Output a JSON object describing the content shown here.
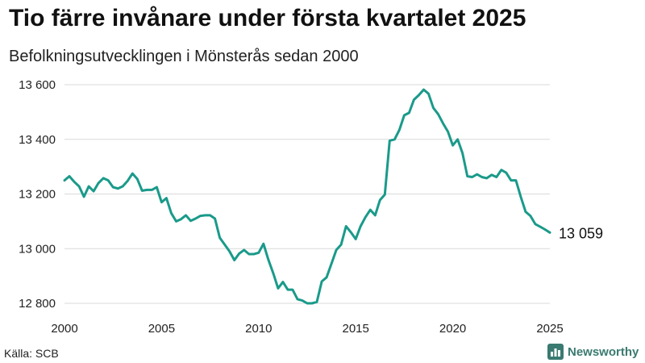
{
  "title": "Tio färre invånare under första kvartalet 2025",
  "subtitle": "Befolkningsutvecklingen i Mönsterås sedan 2000",
  "source": "Källa: SCB",
  "brand": {
    "name": "Newsworthy",
    "icon": "bar-chart-icon",
    "color": "#3a7a70"
  },
  "colors": {
    "line": "#1a9a8a",
    "grid": "#d9d9d9"
  },
  "chart_data": {
    "type": "line",
    "title": "Tio färre invånare under första kvartalet 2025",
    "subtitle": "Befolkningsutvecklingen i Mönsterås sedan 2000",
    "xlabel": "",
    "ylabel": "",
    "xlim": [
      2000,
      2025
    ],
    "ylim": [
      12800,
      13600
    ],
    "x_ticks": [
      2000,
      2005,
      2010,
      2015,
      2020,
      2025
    ],
    "x_tick_labels": [
      "2000",
      "2005",
      "2010",
      "2015",
      "2020",
      "2025"
    ],
    "y_ticks": [
      12800,
      13000,
      13200,
      13400,
      13600
    ],
    "y_tick_labels": [
      "12 800",
      "13 000",
      "13 200",
      "13 400",
      "13 600"
    ],
    "grid": "horizontal",
    "end_label": "13 059",
    "series": [
      {
        "x": [
          2000.0,
          2000.25,
          2000.5,
          2000.75,
          2001.0,
          2001.25,
          2001.5,
          2001.75,
          2002.0,
          2002.25,
          2002.5,
          2002.75,
          2003.0,
          2003.25,
          2003.5,
          2003.75,
          2004.0,
          2004.25,
          2004.5,
          2004.75,
          2005.0,
          2005.25,
          2005.5,
          2005.75,
          2006.0,
          2006.25,
          2006.5,
          2006.75,
          2007.0,
          2007.25,
          2007.5,
          2007.75,
          2008.0,
          2008.25,
          2008.5,
          2008.75,
          2009.0,
          2009.25,
          2009.5,
          2009.75,
          2010.0,
          2010.25,
          2010.5,
          2010.75,
          2011.0,
          2011.25,
          2011.5,
          2011.75,
          2012.0,
          2012.25,
          2012.5,
          2012.75,
          2013.0,
          2013.25,
          2013.5,
          2013.75,
          2014.0,
          2014.25,
          2014.5,
          2014.75,
          2015.0,
          2015.25,
          2015.5,
          2015.75,
          2016.0,
          2016.25,
          2016.5,
          2016.75,
          2017.0,
          2017.25,
          2017.5,
          2017.75,
          2018.0,
          2018.25,
          2018.5,
          2018.75,
          2019.0,
          2019.25,
          2019.5,
          2019.75,
          2020.0,
          2020.25,
          2020.5,
          2020.75,
          2021.0,
          2021.25,
          2021.5,
          2021.75,
          2022.0,
          2022.25,
          2022.5,
          2022.75,
          2023.0,
          2023.25,
          2023.5,
          2023.75,
          2024.0,
          2024.25,
          2024.5,
          2024.75,
          2025.0
        ],
        "y": [
          13250,
          13265,
          13245,
          13228,
          13190,
          13228,
          13210,
          13240,
          13258,
          13250,
          13225,
          13220,
          13228,
          13248,
          13275,
          13255,
          13212,
          13215,
          13215,
          13225,
          13170,
          13185,
          13130,
          13100,
          13108,
          13122,
          13102,
          13110,
          13120,
          13122,
          13122,
          13110,
          13040,
          13015,
          12990,
          12958,
          12982,
          12995,
          12980,
          12980,
          12985,
          13018,
          12960,
          12910,
          12855,
          12878,
          12850,
          12850,
          12815,
          12810,
          12800,
          12800,
          12805,
          12880,
          12895,
          12945,
          12995,
          13015,
          13082,
          13060,
          13035,
          13082,
          13115,
          13142,
          13122,
          13178,
          13198,
          13395,
          13400,
          13435,
          13488,
          13497,
          13545,
          13562,
          13582,
          13567,
          13515,
          13492,
          13458,
          13428,
          13378,
          13400,
          13350,
          13265,
          13262,
          13272,
          13262,
          13258,
          13270,
          13262,
          13288,
          13278,
          13250,
          13250,
          13190,
          13135,
          13120,
          13090,
          13080,
          13070,
          13059
        ]
      }
    ]
  }
}
